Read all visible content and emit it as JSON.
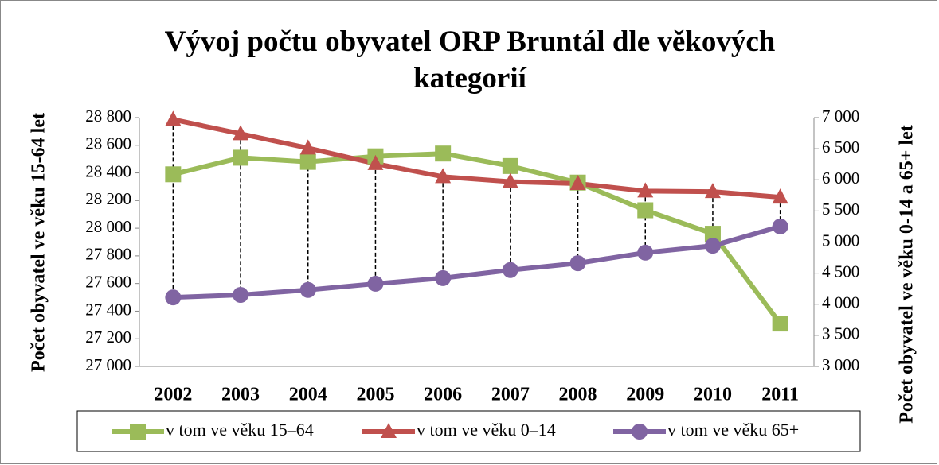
{
  "chart_data": {
    "type": "line",
    "title": "Vývoj počtu obyvatel ORP Bruntál dle věkových kategorií",
    "y_label": "Počet obyvatel ve věku 15-64 let",
    "y2_label": "Počet obyvatel ve věku  0-14 a 65+ let",
    "categories": [
      "2002",
      "2003",
      "2004",
      "2005",
      "2006",
      "2007",
      "2008",
      "2009",
      "2010",
      "2011"
    ],
    "series": [
      {
        "name": "v tom ve věku 15–64",
        "color": "#9bbb59",
        "marker": "square",
        "values": [
          28390,
          28510,
          28480,
          28520,
          28540,
          28450,
          28330,
          28130,
          27960,
          27310
        ]
      },
      {
        "name": "v tom ve věku 0–14",
        "color": "#c0504d",
        "marker": "triangle",
        "axis": "y2",
        "values": [
          6970,
          6740,
          6510,
          6260,
          6050,
          5970,
          5940,
          5820,
          5810,
          5720
        ]
      },
      {
        "name": "v tom ve věku 65+",
        "color": "#8064a2",
        "marker": "circle",
        "axis": "y2",
        "values": [
          4110,
          4150,
          4230,
          4330,
          4420,
          4550,
          4660,
          4830,
          4940,
          5250
        ]
      }
    ],
    "ylim": [
      27000,
      28800
    ],
    "yticks": [
      {
        "value": 27000,
        "label": "27 000"
      },
      {
        "value": 27200,
        "label": "27 200"
      },
      {
        "value": 27400,
        "label": "27 400"
      },
      {
        "value": 27600,
        "label": "27 600"
      },
      {
        "value": 27800,
        "label": "27 800"
      },
      {
        "value": 28000,
        "label": "28 000"
      },
      {
        "value": 28200,
        "label": "28 200"
      },
      {
        "value": 28400,
        "label": "28 400"
      },
      {
        "value": 28600,
        "label": "28 600"
      },
      {
        "value": 28800,
        "label": "28 800"
      }
    ],
    "y2lim": [
      3000,
      7000
    ],
    "y2ticks": [
      {
        "value": 3000,
        "label": "3 000"
      },
      {
        "value": 3500,
        "label": "3 500"
      },
      {
        "value": 4000,
        "label": "4 000"
      },
      {
        "value": 4500,
        "label": "4 500"
      },
      {
        "value": 5000,
        "label": "5 000"
      },
      {
        "value": 5500,
        "label": "5 500"
      },
      {
        "value": 6000,
        "label": "6 000"
      },
      {
        "value": 6500,
        "label": "6 500"
      },
      {
        "value": 7000,
        "label": "7 000"
      }
    ],
    "high_low_lines": true,
    "legend": "bottom"
  }
}
